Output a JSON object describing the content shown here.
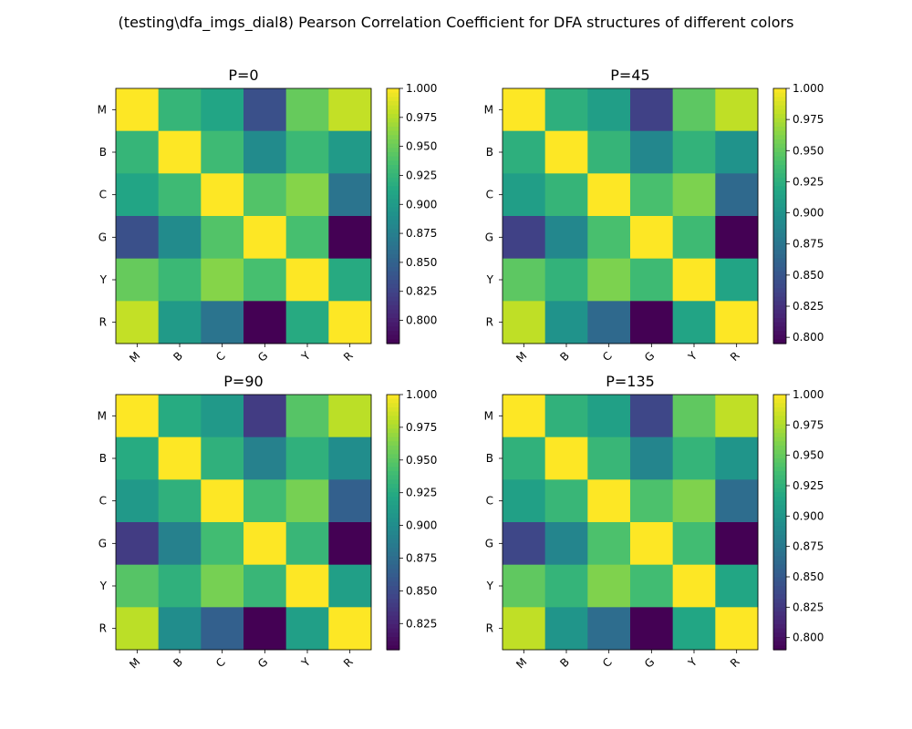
{
  "figure": {
    "title": "(testing\\dfa_imgs_dial8) Pearson Correlation Coefficient for DFA structures of different colors"
  },
  "chart_data": [
    {
      "type": "heatmap",
      "title": "P=0",
      "x_labels": [
        "M",
        "B",
        "C",
        "G",
        "Y",
        "R"
      ],
      "y_labels": [
        "M",
        "B",
        "C",
        "G",
        "Y",
        "R"
      ],
      "values": [
        [
          1.0,
          0.925,
          0.91,
          0.835,
          0.948,
          0.98
        ],
        [
          0.925,
          1.0,
          0.93,
          0.885,
          0.928,
          0.9
        ],
        [
          0.91,
          0.93,
          1.0,
          0.94,
          0.96,
          0.865
        ],
        [
          0.835,
          0.885,
          0.94,
          1.0,
          0.935,
          0.78
        ],
        [
          0.948,
          0.928,
          0.96,
          0.935,
          1.0,
          0.915
        ],
        [
          0.98,
          0.9,
          0.865,
          0.78,
          0.915,
          1.0
        ]
      ],
      "colorbar": {
        "vmin": 0.78,
        "vmax": 1.0,
        "ticks": [
          0.8,
          0.825,
          0.85,
          0.875,
          0.9,
          0.925,
          0.95,
          0.975,
          1.0
        ]
      }
    },
    {
      "type": "heatmap",
      "title": "P=45",
      "x_labels": [
        "M",
        "B",
        "C",
        "G",
        "Y",
        "R"
      ],
      "y_labels": [
        "M",
        "B",
        "C",
        "G",
        "Y",
        "R"
      ],
      "values": [
        [
          1.0,
          0.925,
          0.91,
          0.835,
          0.948,
          0.98
        ],
        [
          0.925,
          1.0,
          0.93,
          0.89,
          0.928,
          0.9
        ],
        [
          0.91,
          0.93,
          1.0,
          0.94,
          0.96,
          0.865
        ],
        [
          0.835,
          0.89,
          0.94,
          1.0,
          0.935,
          0.795
        ],
        [
          0.948,
          0.928,
          0.96,
          0.935,
          1.0,
          0.915
        ],
        [
          0.98,
          0.9,
          0.865,
          0.795,
          0.915,
          1.0
        ]
      ],
      "colorbar": {
        "vmin": 0.795,
        "vmax": 1.0,
        "ticks": [
          0.8,
          0.825,
          0.85,
          0.875,
          0.9,
          0.925,
          0.95,
          0.975,
          1.0
        ]
      }
    },
    {
      "type": "heatmap",
      "title": "P=90",
      "x_labels": [
        "M",
        "B",
        "C",
        "G",
        "Y",
        "R"
      ],
      "y_labels": [
        "M",
        "B",
        "C",
        "G",
        "Y",
        "R"
      ],
      "values": [
        [
          1.0,
          0.925,
          0.91,
          0.84,
          0.948,
          0.98
        ],
        [
          0.925,
          1.0,
          0.93,
          0.89,
          0.93,
          0.9
        ],
        [
          0.91,
          0.93,
          1.0,
          0.94,
          0.96,
          0.865
        ],
        [
          0.84,
          0.89,
          0.94,
          1.0,
          0.935,
          0.805
        ],
        [
          0.948,
          0.93,
          0.96,
          0.935,
          1.0,
          0.915
        ],
        [
          0.98,
          0.9,
          0.865,
          0.805,
          0.915,
          1.0
        ]
      ],
      "colorbar": {
        "vmin": 0.805,
        "vmax": 1.0,
        "ticks": [
          0.825,
          0.85,
          0.875,
          0.9,
          0.925,
          0.95,
          0.975,
          1.0
        ]
      }
    },
    {
      "type": "heatmap",
      "title": "P=135",
      "x_labels": [
        "M",
        "B",
        "C",
        "G",
        "Y",
        "R"
      ],
      "y_labels": [
        "M",
        "B",
        "C",
        "G",
        "Y",
        "R"
      ],
      "values": [
        [
          1.0,
          0.925,
          0.91,
          0.835,
          0.948,
          0.98
        ],
        [
          0.925,
          1.0,
          0.93,
          0.885,
          0.928,
          0.9
        ],
        [
          0.91,
          0.93,
          1.0,
          0.94,
          0.96,
          0.865
        ],
        [
          0.835,
          0.885,
          0.94,
          1.0,
          0.935,
          0.79
        ],
        [
          0.948,
          0.928,
          0.96,
          0.935,
          1.0,
          0.915
        ],
        [
          0.98,
          0.9,
          0.865,
          0.79,
          0.915,
          1.0
        ]
      ],
      "colorbar": {
        "vmin": 0.79,
        "vmax": 1.0,
        "ticks": [
          0.8,
          0.825,
          0.85,
          0.875,
          0.9,
          0.925,
          0.95,
          0.975,
          1.0
        ]
      }
    }
  ]
}
